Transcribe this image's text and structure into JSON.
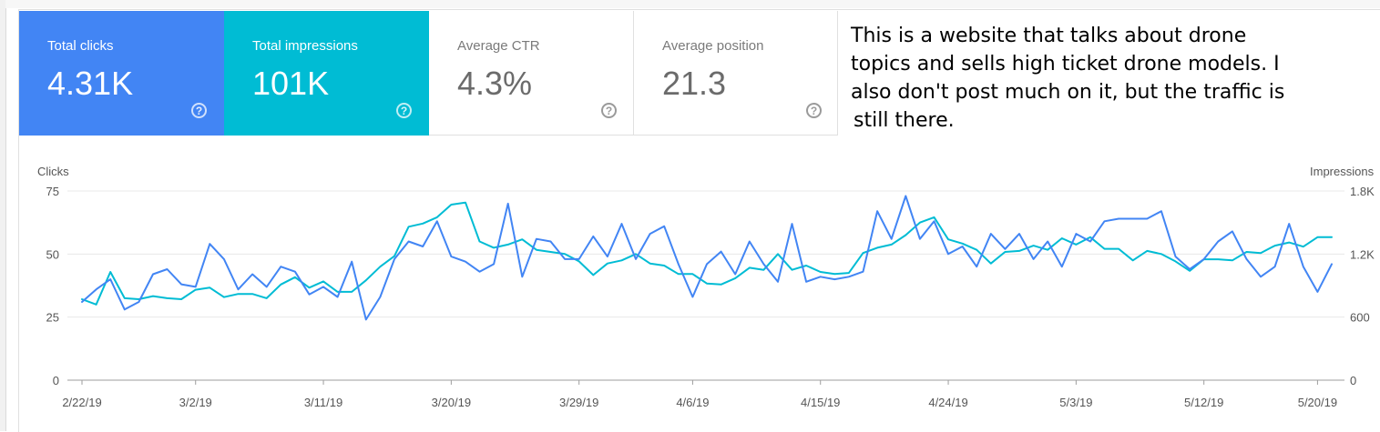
{
  "metrics": {
    "total_clicks": {
      "label": "Total clicks",
      "value": "4.31K",
      "help": "?"
    },
    "total_impressions": {
      "label": "Total impressions",
      "value": "101K",
      "help": "?"
    },
    "average_ctr": {
      "label": "Average CTR",
      "value": "4.3%",
      "help": "?"
    },
    "average_position": {
      "label": "Average position",
      "value": "21.3",
      "help": "?"
    }
  },
  "annotation": {
    "lines": [
      "This is a website that talks about drone",
      "topics and sells high ticket drone models. I",
      "also don't post much on it, but the traffic is",
      "still there."
    ]
  },
  "colors": {
    "clicks": "#4285f4",
    "impressions": "#00bcd4",
    "gridline": "#e8e8e8",
    "baseline": "#9e9e9e"
  },
  "chart_data": {
    "type": "line",
    "left_axis_label": "Clicks",
    "right_axis_label": "Impressions",
    "left_ticks": [
      "0",
      "25",
      "50",
      "75"
    ],
    "right_ticks": [
      "0",
      "600",
      "1.2K",
      "1.8K"
    ],
    "ylim_clicks": [
      0,
      75
    ],
    "ylim_impressions": [
      0,
      1800
    ],
    "x_tick_labels": [
      "2/22/19",
      "3/2/19",
      "3/11/19",
      "3/20/19",
      "3/29/19",
      "4/6/19",
      "4/15/19",
      "4/24/19",
      "5/3/19",
      "5/12/19",
      "5/20/19"
    ],
    "x_tick_day_index": [
      0,
      8,
      17,
      26,
      35,
      43,
      52,
      61,
      70,
      79,
      87
    ],
    "x_range_days": [
      0,
      88
    ],
    "series": [
      {
        "name": "Clicks",
        "axis": "left",
        "color_key": "clicks",
        "values": [
          31,
          36,
          40,
          28,
          31,
          42,
          44,
          38,
          37,
          54,
          48,
          36,
          42,
          37,
          45,
          43,
          34,
          37,
          33,
          47,
          24,
          33,
          48,
          55,
          53,
          63,
          49,
          47,
          43,
          46,
          70,
          41,
          56,
          55,
          48,
          48,
          57,
          49,
          62,
          48,
          58,
          61,
          46,
          33,
          46,
          51,
          42,
          55,
          46,
          39,
          62,
          39,
          41,
          40,
          41,
          43,
          67,
          56,
          73,
          56,
          63,
          50,
          53,
          45,
          58,
          52,
          58,
          48,
          55,
          45,
          58,
          55,
          63,
          64,
          64,
          64,
          67,
          49,
          44,
          48,
          55,
          59,
          48,
          41,
          45,
          62,
          45,
          35,
          46
        ]
      },
      {
        "name": "Impressions",
        "axis": "right",
        "color_key": "impressions",
        "values": [
          770,
          720,
          1030,
          780,
          770,
          800,
          780,
          770,
          860,
          880,
          790,
          820,
          820,
          780,
          910,
          980,
          880,
          940,
          840,
          840,
          950,
          1080,
          1180,
          1460,
          1490,
          1550,
          1670,
          1690,
          1320,
          1260,
          1290,
          1340,
          1240,
          1220,
          1200,
          1130,
          1000,
          1110,
          1140,
          1200,
          1110,
          1090,
          1010,
          1010,
          920,
          910,
          970,
          1070,
          1050,
          1200,
          1050,
          1090,
          1030,
          1010,
          1020,
          1210,
          1260,
          1290,
          1380,
          1500,
          1550,
          1340,
          1300,
          1240,
          1110,
          1220,
          1230,
          1280,
          1240,
          1350,
          1290,
          1360,
          1250,
          1250,
          1140,
          1230,
          1200,
          1130,
          1040,
          1150,
          1150,
          1140,
          1220,
          1210,
          1280,
          1310,
          1270,
          1360,
          1360
        ]
      }
    ]
  }
}
